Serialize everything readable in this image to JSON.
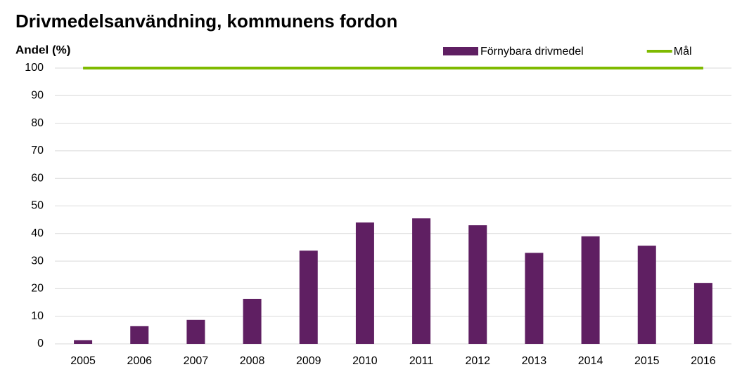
{
  "chart_data": {
    "type": "bar",
    "title": "Drivmedelsanvändning, kommunens fordon",
    "y_label": "Andel (%)",
    "categories": [
      "2005",
      "2006",
      "2007",
      "2008",
      "2009",
      "2010",
      "2011",
      "2012",
      "2013",
      "2014",
      "2015",
      "2016"
    ],
    "series": [
      {
        "name": "Förnybara drivmedel",
        "type": "bar",
        "color": "#5f1f62",
        "values": [
          1.3,
          6.4,
          8.7,
          16.3,
          33.8,
          44,
          45.5,
          43,
          33,
          39,
          35.6,
          22.1
        ]
      },
      {
        "name": "Mål",
        "type": "line",
        "color": "#7fba00",
        "values": [
          100,
          100,
          100,
          100,
          100,
          100,
          100,
          100,
          100,
          100,
          100,
          100
        ]
      }
    ],
    "ylim": [
      0,
      100
    ],
    "yticks": [
      0,
      10,
      20,
      30,
      40,
      50,
      60,
      70,
      80,
      90,
      100
    ],
    "grid": true,
    "legend": "top-right"
  }
}
